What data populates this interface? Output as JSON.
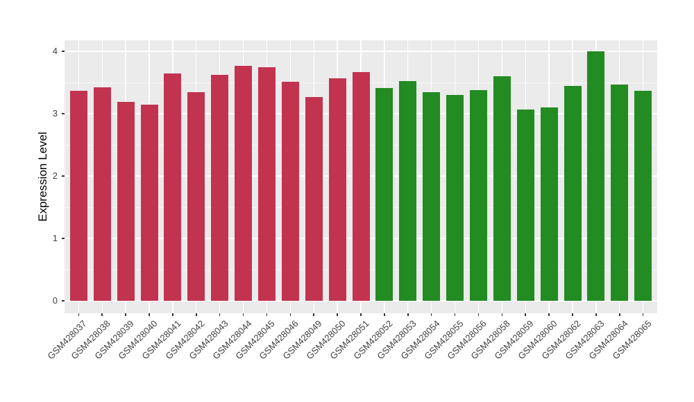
{
  "chart_data": {
    "type": "bar",
    "title": "",
    "xlabel": "",
    "ylabel": "Expression Level",
    "ylim": [
      0,
      4
    ],
    "yticks": [
      0,
      1,
      2,
      3,
      4
    ],
    "yticks_minor": [
      0.5,
      1.5,
      2.5,
      3.5
    ],
    "grid": "white major and minor horizontal gridlines plus vertical gridlines at each category center, on grey panel; no legend; x labels rotated 45 degrees",
    "legend_position": "none",
    "categories": [
      "GSM428037",
      "GSM428038",
      "GSM428039",
      "GSM428040",
      "GSM428041",
      "GSM428042",
      "GSM428043",
      "GSM428044",
      "GSM428045",
      "GSM428046",
      "GSM428049",
      "GSM428050",
      "GSM428051",
      "GSM428052",
      "GSM428053",
      "GSM428054",
      "GSM428055",
      "GSM428056",
      "GSM428058",
      "GSM428059",
      "GSM428060",
      "GSM428062",
      "GSM428063",
      "GSM428064",
      "GSM428065"
    ],
    "values": [
      3.37,
      3.42,
      3.19,
      3.15,
      3.65,
      3.35,
      3.62,
      3.77,
      3.74,
      3.51,
      3.27,
      3.57,
      3.67,
      3.41,
      3.52,
      3.34,
      3.3,
      3.38,
      3.6,
      3.07,
      3.1,
      3.44,
      4.0,
      3.47,
      3.37
    ],
    "group_of_bar": [
      0,
      0,
      0,
      0,
      0,
      0,
      0,
      0,
      0,
      0,
      0,
      0,
      0,
      1,
      1,
      1,
      1,
      1,
      1,
      1,
      1,
      1,
      1,
      1,
      1
    ],
    "group_colors": [
      "#C23350",
      "#228B22"
    ],
    "colors": {
      "panel_background": "#EBEBEB",
      "figure_background": "#FFFFFF",
      "gridline": "#FFFFFF",
      "tick_mark": "#333333",
      "tick_label_text": "#404040",
      "axis_title_text": "#000000"
    }
  }
}
